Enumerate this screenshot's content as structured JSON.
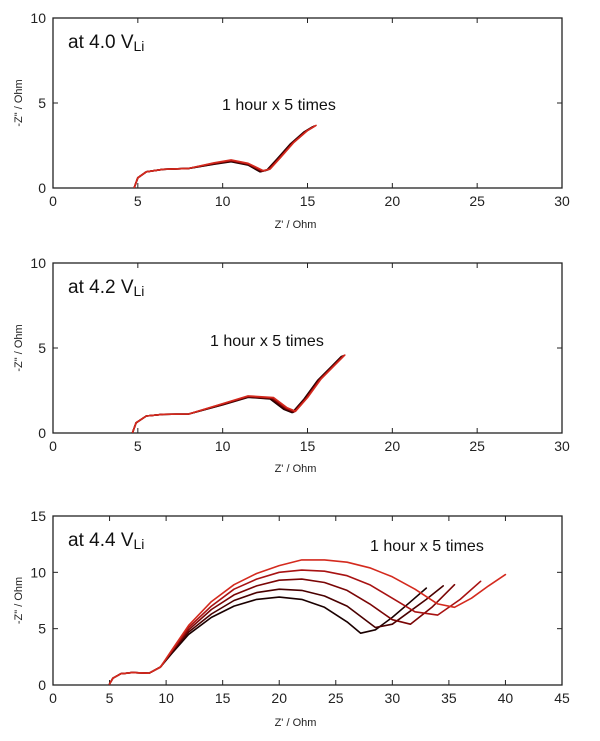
{
  "chart_data": [
    {
      "type": "line",
      "title": "",
      "label_main": "at 4.0 V",
      "label_sub": "Li",
      "annotation": "1 hour x 5 times",
      "xlabel": "Z' / Ohm",
      "ylabel": "-Z\" / Ohm",
      "xlim": [
        0,
        30
      ],
      "ylim": [
        0,
        10
      ],
      "xticks": [
        "0",
        "5",
        "10",
        "15",
        "20",
        "25",
        "30"
      ],
      "yticks": [
        "0",
        "5",
        "10"
      ],
      "grid": false,
      "series": [
        {
          "color": "#1a0000",
          "x": [
            4.8,
            5.0,
            5.5,
            6.5,
            8.0,
            9.5,
            10.5,
            11.5,
            12.2,
            12.6,
            13.2,
            14.0,
            14.8,
            15.3
          ],
          "y": [
            0.05,
            0.6,
            0.95,
            1.1,
            1.15,
            1.4,
            1.55,
            1.35,
            0.95,
            1.05,
            1.7,
            2.6,
            3.3,
            3.6
          ]
        },
        {
          "color": "#3a0000",
          "x": [
            4.8,
            5.0,
            5.5,
            6.5,
            8.0,
            9.5,
            10.5,
            11.5,
            12.25,
            12.65,
            13.25,
            14.05,
            14.85,
            15.35
          ],
          "y": [
            0.05,
            0.6,
            0.95,
            1.1,
            1.15,
            1.42,
            1.58,
            1.38,
            0.97,
            1.07,
            1.72,
            2.62,
            3.32,
            3.62
          ]
        },
        {
          "color": "#6b0000",
          "x": [
            4.8,
            5.0,
            5.5,
            6.5,
            8.0,
            9.5,
            10.5,
            11.5,
            12.3,
            12.7,
            13.3,
            14.1,
            14.9,
            15.4
          ],
          "y": [
            0.05,
            0.6,
            0.95,
            1.1,
            1.15,
            1.44,
            1.6,
            1.4,
            0.99,
            1.09,
            1.74,
            2.64,
            3.34,
            3.64
          ]
        },
        {
          "color": "#9e0a0a",
          "x": [
            4.8,
            5.0,
            5.5,
            6.5,
            8.0,
            9.5,
            10.5,
            11.5,
            12.35,
            12.75,
            13.35,
            14.15,
            14.95,
            15.45
          ],
          "y": [
            0.05,
            0.6,
            0.95,
            1.1,
            1.15,
            1.46,
            1.62,
            1.42,
            1.0,
            1.1,
            1.75,
            2.65,
            3.35,
            3.65
          ]
        },
        {
          "color": "#d42a1e",
          "x": [
            4.8,
            5.0,
            5.5,
            6.5,
            8.0,
            9.5,
            10.5,
            11.5,
            12.4,
            12.8,
            13.4,
            14.2,
            15.0,
            15.5
          ],
          "y": [
            0.05,
            0.6,
            0.95,
            1.1,
            1.15,
            1.48,
            1.65,
            1.45,
            1.02,
            1.12,
            1.78,
            2.68,
            3.38,
            3.68
          ]
        }
      ]
    },
    {
      "type": "line",
      "title": "",
      "label_main": "at 4.2 V",
      "label_sub": "Li",
      "annotation": "1 hour x 5 times",
      "xlabel": "Z' / Ohm",
      "ylabel": "-Z\" / Ohm",
      "xlim": [
        0,
        30
      ],
      "ylim": [
        0,
        10
      ],
      "xticks": [
        "0",
        "5",
        "10",
        "15",
        "20",
        "25",
        "30"
      ],
      "yticks": [
        "0",
        "5",
        "10"
      ],
      "grid": false,
      "series": [
        {
          "color": "#1a0000",
          "x": [
            4.7,
            4.9,
            5.5,
            6.5,
            8.0,
            10.0,
            11.5,
            12.8,
            13.6,
            14.1,
            14.8,
            15.6,
            16.4,
            17.0
          ],
          "y": [
            0.05,
            0.6,
            1.0,
            1.1,
            1.12,
            1.65,
            2.1,
            2.0,
            1.4,
            1.2,
            2.0,
            3.1,
            3.9,
            4.5
          ]
        },
        {
          "color": "#3a0000",
          "x": [
            4.7,
            4.9,
            5.5,
            6.5,
            8.0,
            10.0,
            11.5,
            12.85,
            13.65,
            14.15,
            14.85,
            15.65,
            16.45,
            17.05
          ],
          "y": [
            0.05,
            0.6,
            1.0,
            1.1,
            1.12,
            1.67,
            2.12,
            2.02,
            1.42,
            1.22,
            2.02,
            3.12,
            3.92,
            4.52
          ]
        },
        {
          "color": "#6b0000",
          "x": [
            4.7,
            4.9,
            5.5,
            6.5,
            8.0,
            10.0,
            11.5,
            12.9,
            13.7,
            14.2,
            14.9,
            15.7,
            16.5,
            17.1
          ],
          "y": [
            0.05,
            0.6,
            1.0,
            1.1,
            1.12,
            1.69,
            2.14,
            2.04,
            1.44,
            1.24,
            2.04,
            3.14,
            3.94,
            4.54
          ]
        },
        {
          "color": "#9e0a0a",
          "x": [
            4.7,
            4.9,
            5.5,
            6.5,
            8.0,
            10.0,
            11.5,
            12.95,
            13.75,
            14.25,
            14.95,
            15.75,
            16.55,
            17.15
          ],
          "y": [
            0.05,
            0.6,
            1.0,
            1.1,
            1.12,
            1.71,
            2.16,
            2.06,
            1.46,
            1.26,
            2.06,
            3.16,
            3.96,
            4.56
          ]
        },
        {
          "color": "#d42a1e",
          "x": [
            4.7,
            4.9,
            5.5,
            6.5,
            8.0,
            10.0,
            11.5,
            13.0,
            13.8,
            14.3,
            15.0,
            15.8,
            16.6,
            17.2
          ],
          "y": [
            0.05,
            0.6,
            1.0,
            1.1,
            1.12,
            1.73,
            2.18,
            2.08,
            1.48,
            1.28,
            2.08,
            3.18,
            3.98,
            4.58
          ]
        }
      ]
    },
    {
      "type": "line",
      "title": "",
      "label_main": "at 4.4 V",
      "label_sub": "Li",
      "annotation": "1 hour x 5 times",
      "xlabel": "Z' / Ohm",
      "ylabel": "-Z\" / Ohm",
      "xlim": [
        0,
        45
      ],
      "ylim": [
        0,
        15
      ],
      "xticks": [
        "0",
        "5",
        "10",
        "15",
        "20",
        "25",
        "30",
        "35",
        "40",
        "45"
      ],
      "yticks": [
        "0",
        "5",
        "10",
        "15"
      ],
      "grid": false,
      "series": [
        {
          "color": "#1a0000",
          "x": [
            5.0,
            5.3,
            6.0,
            7.0,
            8.5,
            9.5,
            10.5,
            12.0,
            14.0,
            16.0,
            18.0,
            20.0,
            22.0,
            24.0,
            26.0,
            27.2,
            28.5,
            30.0,
            31.5,
            33.0
          ],
          "y": [
            0.1,
            0.6,
            1.0,
            1.1,
            1.05,
            1.6,
            2.8,
            4.5,
            6.0,
            7.0,
            7.6,
            7.8,
            7.6,
            6.9,
            5.6,
            4.6,
            4.9,
            6.0,
            7.3,
            8.6
          ]
        },
        {
          "color": "#4a0000",
          "x": [
            5.0,
            5.3,
            6.0,
            7.0,
            8.5,
            9.5,
            10.5,
            12.0,
            14.0,
            16.0,
            18.0,
            20.0,
            22.0,
            24.0,
            26.0,
            28.5,
            30.0,
            31.5,
            33.0,
            34.5
          ],
          "y": [
            0.1,
            0.6,
            1.0,
            1.1,
            1.05,
            1.6,
            2.9,
            4.7,
            6.3,
            7.5,
            8.2,
            8.5,
            8.4,
            7.9,
            7.0,
            5.1,
            5.4,
            6.5,
            7.6,
            8.8
          ]
        },
        {
          "color": "#7a0505",
          "x": [
            5.0,
            5.3,
            6.0,
            7.0,
            8.5,
            9.5,
            10.5,
            12.0,
            14.0,
            16.0,
            18.0,
            20.0,
            22.0,
            24.0,
            26.0,
            28.0,
            30.0,
            31.6,
            33.5,
            35.5
          ],
          "y": [
            0.1,
            0.6,
            1.0,
            1.1,
            1.05,
            1.6,
            3.0,
            4.9,
            6.7,
            8.0,
            8.8,
            9.3,
            9.4,
            9.1,
            8.4,
            7.2,
            5.8,
            5.4,
            6.9,
            8.9
          ]
        },
        {
          "color": "#a81212",
          "x": [
            5.0,
            5.3,
            6.0,
            7.0,
            8.5,
            9.5,
            10.5,
            12.0,
            14.0,
            16.0,
            18.0,
            20.0,
            22.0,
            24.0,
            26.0,
            28.0,
            30.0,
            32.0,
            34.0,
            36.0,
            37.8
          ],
          "y": [
            0.1,
            0.6,
            1.0,
            1.1,
            1.05,
            1.6,
            3.0,
            5.1,
            7.0,
            8.5,
            9.4,
            10.0,
            10.2,
            10.1,
            9.7,
            8.9,
            7.7,
            6.5,
            6.2,
            7.6,
            9.2
          ]
        },
        {
          "color": "#d42a1e",
          "x": [
            5.0,
            5.3,
            6.0,
            7.0,
            8.5,
            9.5,
            10.5,
            12.0,
            14.0,
            16.0,
            18.0,
            20.0,
            22.0,
            24.0,
            26.0,
            28.0,
            30.0,
            32.0,
            34.0,
            35.5,
            37.0,
            38.5,
            40.0
          ],
          "y": [
            0.1,
            0.6,
            1.0,
            1.1,
            1.05,
            1.6,
            3.1,
            5.3,
            7.4,
            8.9,
            9.9,
            10.6,
            11.1,
            11.1,
            10.9,
            10.4,
            9.6,
            8.5,
            7.2,
            6.9,
            7.7,
            8.8,
            9.8
          ]
        }
      ]
    }
  ]
}
